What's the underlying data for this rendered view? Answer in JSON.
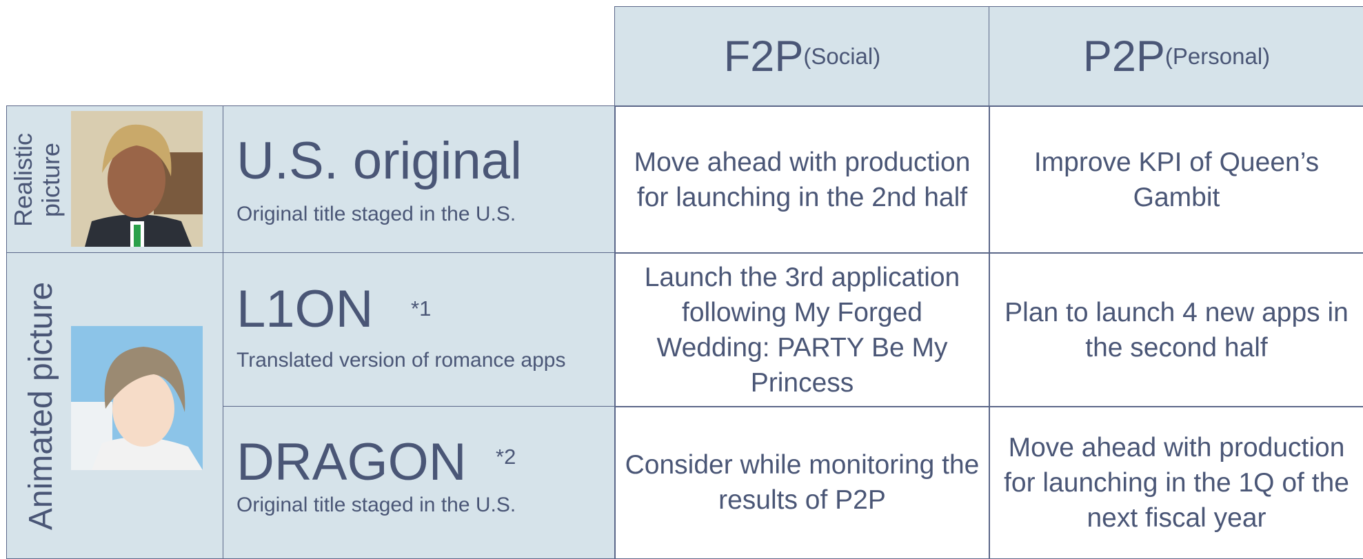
{
  "header": {
    "columns": [
      {
        "main": "F2P",
        "sub": "(Social)"
      },
      {
        "main": "P2P",
        "sub": "(Personal)"
      }
    ]
  },
  "groups": [
    {
      "label": "Realistic picture"
    },
    {
      "label": "Animated picture"
    }
  ],
  "rows": [
    {
      "title": "U.S. original",
      "description": "Original title staged in the U.S.",
      "f2p": "Move ahead with production for launching in the 2nd half",
      "p2p": "Improve KPI of Queen’s Gambit"
    },
    {
      "title": "L1ON",
      "note": "*1",
      "description": "Translated version of romance apps",
      "f2p": "Launch the 3rd application following My Forged Wedding: PARTY Be My Princess",
      "p2p": "Plan to launch 4 new apps in the second half"
    },
    {
      "title": "DRAGON",
      "note": "*2",
      "description": "Original title staged in the U.S.",
      "f2p": "Consider while monitoring the results of P2P",
      "p2p": "Move ahead with production for launching in the 1Q of the next fiscal year"
    }
  ]
}
